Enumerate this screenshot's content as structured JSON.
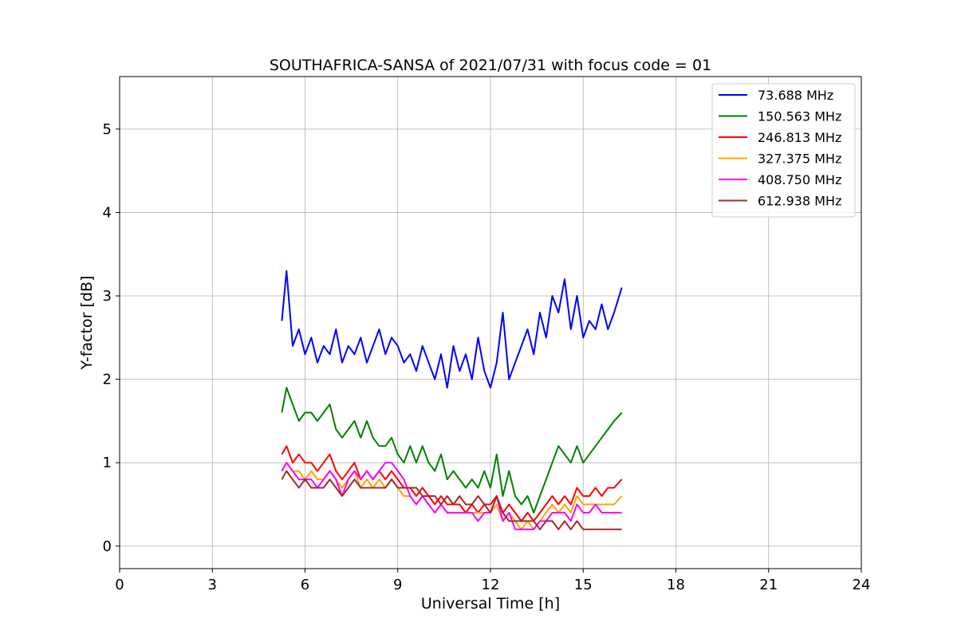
{
  "chart_data": {
    "type": "line",
    "title": "SOUTHAFRICA-SANSA of 2021/07/31 with focus code = 01",
    "xlabel": "Universal Time [h]",
    "ylabel": "Y-factor [dB]",
    "xlim": [
      0,
      24
    ],
    "ylim": [
      -0.27,
      5.63
    ],
    "xticks": [
      0,
      3,
      6,
      9,
      12,
      15,
      18,
      21,
      24
    ],
    "yticks": [
      0,
      1,
      2,
      3,
      4,
      5
    ],
    "grid": true,
    "legend_position": "top-right",
    "series": [
      {
        "name": " 73.688 MHz",
        "color": "#0000ff",
        "x": [
          5.25,
          5.4,
          5.6,
          5.8,
          6.0,
          6.2,
          6.4,
          6.6,
          6.8,
          7.0,
          7.2,
          7.4,
          7.6,
          7.8,
          8.0,
          8.2,
          8.4,
          8.6,
          8.8,
          9.0,
          9.2,
          9.4,
          9.6,
          9.8,
          10.0,
          10.2,
          10.4,
          10.6,
          10.8,
          11.0,
          11.2,
          11.4,
          11.6,
          11.8,
          12.0,
          12.2,
          12.4,
          12.6,
          12.8,
          13.0,
          13.2,
          13.4,
          13.6,
          13.8,
          14.0,
          14.2,
          14.4,
          14.6,
          14.8,
          15.0,
          15.2,
          15.4,
          15.6,
          15.8,
          16.0,
          16.25
        ],
        "y": [
          2.7,
          3.3,
          2.4,
          2.6,
          2.3,
          2.5,
          2.2,
          2.4,
          2.3,
          2.6,
          2.2,
          2.4,
          2.3,
          2.5,
          2.2,
          2.4,
          2.6,
          2.3,
          2.5,
          2.4,
          2.2,
          2.3,
          2.1,
          2.4,
          2.2,
          2.0,
          2.3,
          1.9,
          2.4,
          2.1,
          2.3,
          2.0,
          2.5,
          2.1,
          1.9,
          2.2,
          2.8,
          2.0,
          2.2,
          2.4,
          2.6,
          2.3,
          2.8,
          2.5,
          3.0,
          2.8,
          3.2,
          2.6,
          3.0,
          2.5,
          2.7,
          2.6,
          2.9,
          2.6,
          2.8,
          3.1
        ]
      },
      {
        "name": "150.563 MHz",
        "color": "#008000",
        "x": [
          5.25,
          5.4,
          5.6,
          5.8,
          6.0,
          6.2,
          6.4,
          6.6,
          6.8,
          7.0,
          7.2,
          7.4,
          7.6,
          7.8,
          8.0,
          8.2,
          8.4,
          8.6,
          8.8,
          9.0,
          9.2,
          9.4,
          9.6,
          9.8,
          10.0,
          10.2,
          10.4,
          10.6,
          10.8,
          11.0,
          11.2,
          11.4,
          11.6,
          11.8,
          12.0,
          12.2,
          12.4,
          12.6,
          12.8,
          13.0,
          13.2,
          13.4,
          13.6,
          13.8,
          14.0,
          14.2,
          14.4,
          14.6,
          14.8,
          15.0,
          15.2,
          15.4,
          15.6,
          15.8,
          16.0,
          16.25
        ],
        "y": [
          1.6,
          1.9,
          1.7,
          1.5,
          1.6,
          1.6,
          1.5,
          1.6,
          1.7,
          1.4,
          1.3,
          1.4,
          1.5,
          1.3,
          1.5,
          1.3,
          1.2,
          1.2,
          1.3,
          1.1,
          1.0,
          1.2,
          1.0,
          1.2,
          1.0,
          0.9,
          1.1,
          0.8,
          0.9,
          0.8,
          0.7,
          0.8,
          0.7,
          0.9,
          0.7,
          1.1,
          0.6,
          0.9,
          0.6,
          0.5,
          0.6,
          0.4,
          0.6,
          0.8,
          1.0,
          1.2,
          1.1,
          1.0,
          1.2,
          1.0,
          1.1,
          1.2,
          1.3,
          1.4,
          1.5,
          1.6
        ]
      },
      {
        "name": "246.813 MHz",
        "color": "#ff0000",
        "x": [
          5.25,
          5.4,
          5.6,
          5.8,
          6.0,
          6.2,
          6.4,
          6.6,
          6.8,
          7.0,
          7.2,
          7.4,
          7.6,
          7.8,
          8.0,
          8.2,
          8.4,
          8.6,
          8.8,
          9.0,
          9.2,
          9.4,
          9.6,
          9.8,
          10.0,
          10.2,
          10.4,
          10.6,
          10.8,
          11.0,
          11.2,
          11.4,
          11.6,
          11.8,
          12.0,
          12.2,
          12.4,
          12.6,
          12.8,
          13.0,
          13.2,
          13.4,
          13.6,
          13.8,
          14.0,
          14.2,
          14.4,
          14.6,
          14.8,
          15.0,
          15.2,
          15.4,
          15.6,
          15.8,
          16.0,
          16.25
        ],
        "y": [
          1.1,
          1.2,
          1.0,
          1.1,
          1.0,
          1.0,
          0.9,
          1.0,
          1.1,
          0.9,
          0.8,
          0.9,
          1.0,
          0.8,
          0.9,
          0.8,
          0.9,
          0.8,
          0.9,
          0.8,
          0.7,
          0.7,
          0.6,
          0.7,
          0.6,
          0.5,
          0.6,
          0.5,
          0.5,
          0.5,
          0.4,
          0.5,
          0.4,
          0.5,
          0.5,
          0.6,
          0.4,
          0.5,
          0.4,
          0.3,
          0.4,
          0.3,
          0.4,
          0.5,
          0.6,
          0.5,
          0.6,
          0.5,
          0.7,
          0.6,
          0.6,
          0.7,
          0.6,
          0.7,
          0.7,
          0.8
        ]
      },
      {
        "name": "327.375 MHz",
        "color": "#ffa500",
        "x": [
          5.25,
          5.4,
          5.6,
          5.8,
          6.0,
          6.2,
          6.4,
          6.6,
          6.8,
          7.0,
          7.2,
          7.4,
          7.6,
          7.8,
          8.0,
          8.2,
          8.4,
          8.6,
          8.8,
          9.0,
          9.2,
          9.4,
          9.6,
          9.8,
          10.0,
          10.2,
          10.4,
          10.6,
          10.8,
          11.0,
          11.2,
          11.4,
          11.6,
          11.8,
          12.0,
          12.2,
          12.4,
          12.6,
          12.8,
          13.0,
          13.2,
          13.4,
          13.6,
          13.8,
          14.0,
          14.2,
          14.4,
          14.6,
          14.8,
          15.0,
          15.2,
          15.4,
          15.6,
          15.8,
          16.0,
          16.25
        ],
        "y": [
          0.9,
          1.0,
          0.9,
          0.9,
          0.8,
          0.9,
          0.8,
          0.8,
          0.9,
          0.8,
          0.7,
          0.8,
          0.9,
          0.7,
          0.8,
          0.7,
          0.8,
          0.7,
          0.8,
          0.7,
          0.6,
          0.6,
          0.5,
          0.6,
          0.5,
          0.4,
          0.5,
          0.4,
          0.4,
          0.4,
          0.4,
          0.4,
          0.4,
          0.4,
          0.4,
          0.5,
          0.3,
          0.4,
          0.3,
          0.2,
          0.3,
          0.2,
          0.3,
          0.4,
          0.5,
          0.4,
          0.5,
          0.4,
          0.6,
          0.5,
          0.5,
          0.5,
          0.5,
          0.5,
          0.5,
          0.6
        ]
      },
      {
        "name": "408.750 MHz",
        "color": "#ff00ff",
        "x": [
          5.25,
          5.4,
          5.6,
          5.8,
          6.0,
          6.2,
          6.4,
          6.6,
          6.8,
          7.0,
          7.2,
          7.4,
          7.6,
          7.8,
          8.0,
          8.2,
          8.4,
          8.6,
          8.8,
          9.0,
          9.2,
          9.4,
          9.6,
          9.8,
          10.0,
          10.2,
          10.4,
          10.6,
          10.8,
          11.0,
          11.2,
          11.4,
          11.6,
          11.8,
          12.0,
          12.2,
          12.4,
          12.6,
          12.8,
          13.0,
          13.2,
          13.4,
          13.6,
          13.8,
          14.0,
          14.2,
          14.4,
          14.6,
          14.8,
          15.0,
          15.2,
          15.4,
          15.6,
          15.8,
          16.0,
          16.25
        ],
        "y": [
          0.9,
          1.0,
          0.9,
          0.8,
          0.8,
          0.8,
          0.7,
          0.8,
          0.9,
          0.8,
          0.6,
          0.8,
          0.9,
          0.8,
          0.9,
          0.8,
          0.9,
          1.0,
          1.0,
          0.9,
          0.8,
          0.6,
          0.5,
          0.6,
          0.5,
          0.4,
          0.5,
          0.4,
          0.4,
          0.4,
          0.4,
          0.4,
          0.3,
          0.4,
          0.4,
          0.6,
          0.3,
          0.4,
          0.2,
          0.2,
          0.2,
          0.2,
          0.3,
          0.3,
          0.4,
          0.4,
          0.4,
          0.3,
          0.5,
          0.4,
          0.4,
          0.5,
          0.4,
          0.4,
          0.4,
          0.4
        ]
      },
      {
        "name": "612.938 MHz",
        "color": "#a52a2a",
        "x": [
          5.25,
          5.4,
          5.6,
          5.8,
          6.0,
          6.2,
          6.4,
          6.6,
          6.8,
          7.0,
          7.2,
          7.4,
          7.6,
          7.8,
          8.0,
          8.2,
          8.4,
          8.6,
          8.8,
          9.0,
          9.2,
          9.4,
          9.6,
          9.8,
          10.0,
          10.2,
          10.4,
          10.6,
          10.8,
          11.0,
          11.2,
          11.4,
          11.6,
          11.8,
          12.0,
          12.2,
          12.4,
          12.6,
          12.8,
          13.0,
          13.2,
          13.4,
          13.6,
          13.8,
          14.0,
          14.2,
          14.4,
          14.6,
          14.8,
          15.0,
          15.2,
          15.4,
          15.6,
          15.8,
          16.0,
          16.25
        ],
        "y": [
          0.8,
          0.9,
          0.8,
          0.7,
          0.8,
          0.7,
          0.7,
          0.7,
          0.8,
          0.7,
          0.6,
          0.7,
          0.8,
          0.7,
          0.7,
          0.7,
          0.7,
          0.7,
          0.8,
          0.7,
          0.7,
          0.7,
          0.7,
          0.6,
          0.6,
          0.6,
          0.5,
          0.6,
          0.5,
          0.6,
          0.5,
          0.5,
          0.6,
          0.5,
          0.4,
          0.6,
          0.4,
          0.3,
          0.3,
          0.3,
          0.3,
          0.3,
          0.2,
          0.3,
          0.3,
          0.2,
          0.3,
          0.2,
          0.3,
          0.2,
          0.2,
          0.2,
          0.2,
          0.2,
          0.2,
          0.2
        ]
      }
    ]
  }
}
